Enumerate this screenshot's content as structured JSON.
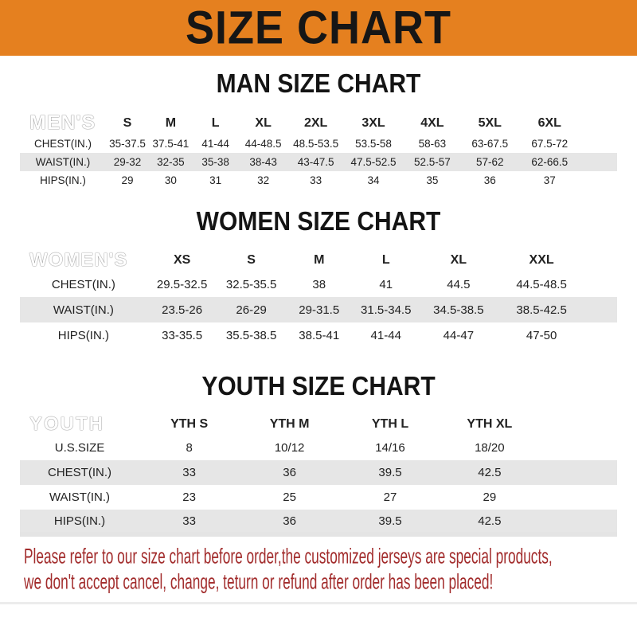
{
  "banner": {
    "title": "SIZE CHART"
  },
  "chart_data": [
    {
      "type": "table",
      "title": "MAN SIZE CHART",
      "corner_label": "MEN'S",
      "columns": [
        "S",
        "M",
        "L",
        "XL",
        "2XL",
        "3XL",
        "4XL",
        "5XL",
        "6XL"
      ],
      "rows": [
        {
          "label": "CHEST(IN.)",
          "values": [
            "35-37.5",
            "37.5-41",
            "41-44",
            "44-48.5",
            "48.5-53.5",
            "53.5-58",
            "58-63",
            "63-67.5",
            "67.5-72"
          ]
        },
        {
          "label": "WAIST(IN.)",
          "values": [
            "29-32",
            "32-35",
            "35-38",
            "38-43",
            "43-47.5",
            "47.5-52.5",
            "52.5-57",
            "57-62",
            "62-66.5"
          ]
        },
        {
          "label": "HIPS(IN.)",
          "values": [
            "29",
            "30",
            "31",
            "32",
            "33",
            "34",
            "35",
            "36",
            "37"
          ]
        }
      ]
    },
    {
      "type": "table",
      "title": "WOMEN SIZE CHART",
      "corner_label": "WOMEN'S",
      "columns": [
        "XS",
        "S",
        "M",
        "L",
        "XL",
        "XXL"
      ],
      "rows": [
        {
          "label": "CHEST(IN.)",
          "values": [
            "29.5-32.5",
            "32.5-35.5",
            "38",
            "41",
            "44.5",
            "44.5-48.5"
          ]
        },
        {
          "label": "WAIST(IN.)",
          "values": [
            "23.5-26",
            "26-29",
            "29-31.5",
            "31.5-34.5",
            "34.5-38.5",
            "38.5-42.5"
          ]
        },
        {
          "label": "HIPS(IN.)",
          "values": [
            "33-35.5",
            "35.5-38.5",
            "38.5-41",
            "41-44",
            "44-47",
            "47-50"
          ]
        }
      ]
    },
    {
      "type": "table",
      "title": "YOUTH SIZE CHART",
      "corner_label": "YOUTH",
      "columns": [
        "YTH S",
        "YTH M",
        "YTH L",
        "YTH XL"
      ],
      "rows": [
        {
          "label": "U.S.SIZE",
          "values": [
            "8",
            "10/12",
            "14/16",
            "18/20"
          ]
        },
        {
          "label": "CHEST(IN.)",
          "values": [
            "33",
            "36",
            "39.5",
            "42.5"
          ]
        },
        {
          "label": "WAIST(IN.)",
          "values": [
            "23",
            "25",
            "27",
            "29"
          ]
        },
        {
          "label": "HIPS(IN.)",
          "values": [
            "33",
            "36",
            "39.5",
            "42.5"
          ]
        }
      ]
    }
  ],
  "notice": {
    "line1": "Please refer to our size chart before order,the customized jerseys are special products,",
    "line2": "we don't accept cancel, change, teturn or refund after order has been placed!"
  },
  "colors": {
    "banner_orange": "#e5801f",
    "header_bar_black": "#181818",
    "stripe_gray": "#e6e6e6",
    "notice_red": "#a22c2c"
  }
}
